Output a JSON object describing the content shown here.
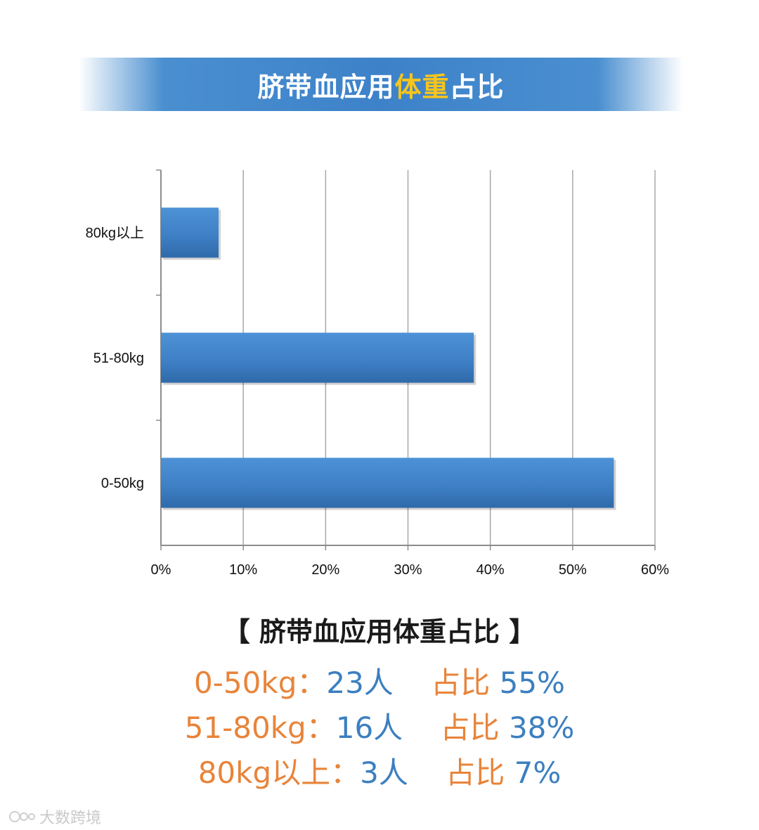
{
  "header": {
    "title_part1": "脐带血应用",
    "title_highlight": "体重",
    "title_part2": "占比"
  },
  "chart_data": {
    "type": "bar",
    "orientation": "horizontal",
    "categories": [
      "80kg以上",
      "51-80kg",
      "0-50kg"
    ],
    "values": [
      7,
      38,
      55
    ],
    "unit": "%",
    "xlim": [
      0,
      60
    ],
    "x_ticks": [
      "0%",
      "10%",
      "20%",
      "30%",
      "40%",
      "50%",
      "60%"
    ],
    "grid": "vertical",
    "bar_color": "#3f7fc4"
  },
  "summary": {
    "title": "【 脐带血应用体重占比 】",
    "rows": [
      {
        "range": "0-50kg：",
        "count": "23人",
        "label": "占比",
        "percent": "55%"
      },
      {
        "range": "51-80kg：",
        "count": "16人",
        "label": "占比",
        "percent": "38%"
      },
      {
        "range": "80kg以上：",
        "count": "3人",
        "label": "占比",
        "percent": "7%"
      }
    ]
  },
  "watermark": {
    "text": "大数跨境"
  }
}
